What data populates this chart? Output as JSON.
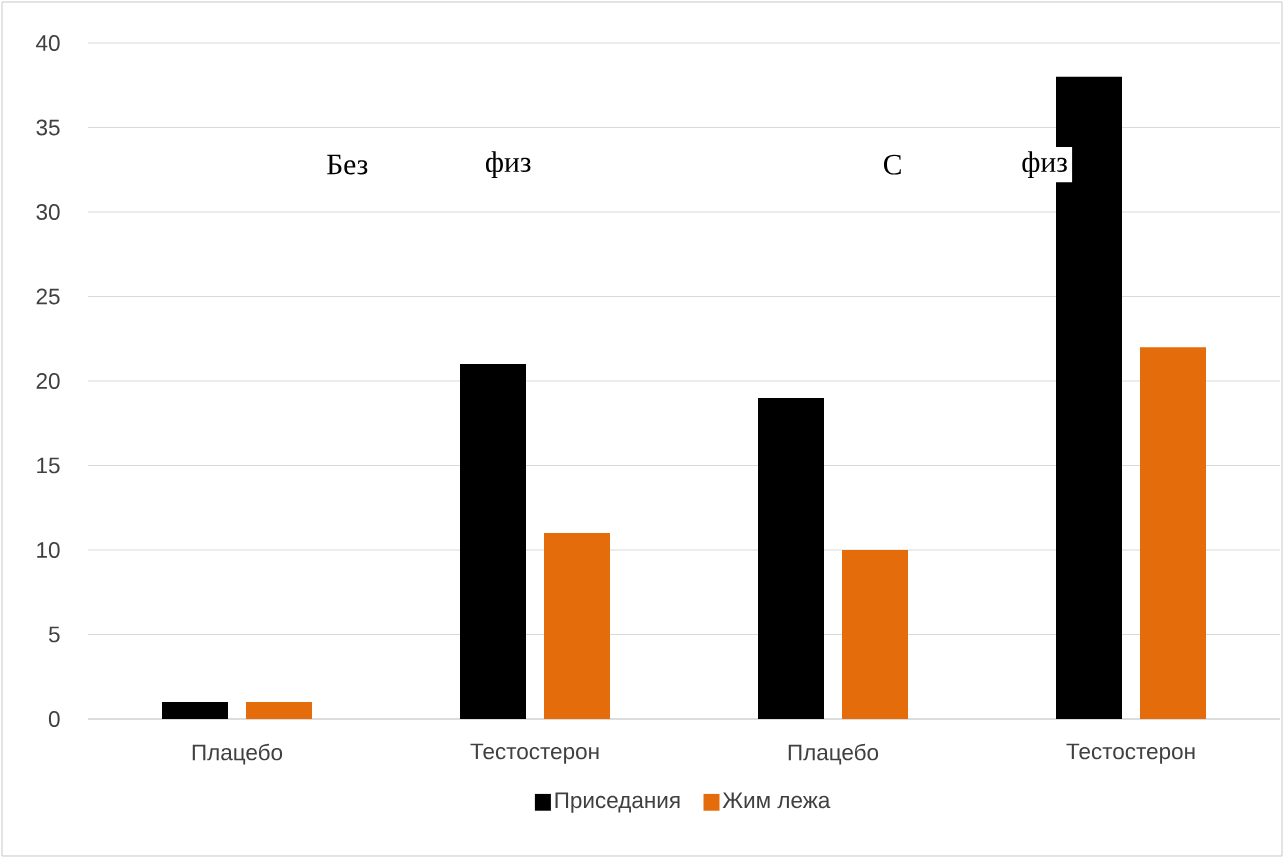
{
  "chart_data": {
    "type": "bar",
    "categories": [
      "Плацебо",
      "Тестостерон",
      "Плацебо",
      "Тестостерон"
    ],
    "series": [
      {
        "name": "Приседания",
        "color": "#000000",
        "values": [
          1,
          21,
          19,
          38
        ]
      },
      {
        "name": "Жим лежа",
        "color": "#e46c0a",
        "values": [
          1,
          11,
          10,
          22
        ]
      }
    ],
    "ylim": [
      0,
      40
    ],
    "yticks": [
      0,
      5,
      10,
      15,
      20,
      25,
      30,
      35,
      40
    ],
    "grid": "y",
    "legend": "bottom",
    "annotations": [
      "Без",
      "физ",
      "С",
      "физ"
    ]
  }
}
